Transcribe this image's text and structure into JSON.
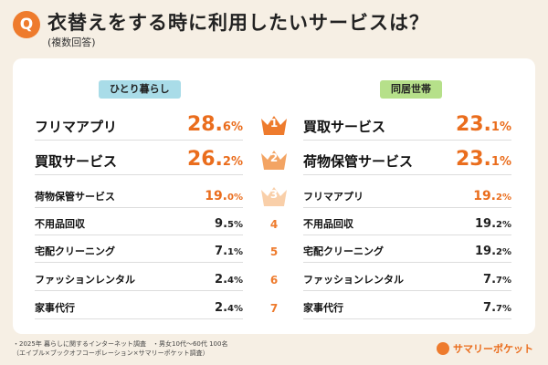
{
  "header": {
    "q": "Q",
    "title": "衣替えをする時に利用したいサービスは？",
    "subtitle": "(複数回答)"
  },
  "chart_data": {
    "type": "table",
    "groups": [
      {
        "name": "ひとり暮らし",
        "items": [
          {
            "label": "フリマアプリ",
            "value": "28.",
            "decimal": "6%"
          },
          {
            "label": "買取サービス",
            "value": "26.",
            "decimal": "2%"
          },
          {
            "label": "荷物保管サービス",
            "value": "19.",
            "decimal": "0%"
          },
          {
            "label": "不用品回収",
            "value": "9.",
            "decimal": "5%"
          },
          {
            "label": "宅配クリーニング",
            "value": "7.",
            "decimal": "1%"
          },
          {
            "label": "ファッションレンタル",
            "value": "2.",
            "decimal": "4%"
          },
          {
            "label": "家事代行",
            "value": "2.",
            "decimal": "4%"
          }
        ]
      },
      {
        "name": "同居世帯",
        "items": [
          {
            "label": "買取サービス",
            "value": "23.",
            "decimal": "1%"
          },
          {
            "label": "荷物保管サービス",
            "value": "23.",
            "decimal": "1%"
          },
          {
            "label": "フリマアプリ",
            "value": "19.",
            "decimal": "2%"
          },
          {
            "label": "不用品回収",
            "value": "19.",
            "decimal": "2%"
          },
          {
            "label": "宅配クリーニング",
            "value": "19.",
            "decimal": "2%"
          },
          {
            "label": "ファッションレンタル",
            "value": "7.",
            "decimal": "7%"
          },
          {
            "label": "家事代行",
            "value": "7.",
            "decimal": "7%"
          }
        ]
      }
    ],
    "ranks": [
      "1",
      "2",
      "3",
      "4",
      "5",
      "6",
      "7"
    ],
    "crown_colors": [
      "#ee7b2d",
      "#f3a463",
      "#f9cfa9"
    ]
  },
  "footer": {
    "note_line1": "・2025年 暮らしに関するインターネット調査　・男女10代〜60代 100名",
    "note_line2": "（エイブル×ブックオフコーポレーション×サマリーポケット調査）",
    "brand": "サマリーポケット"
  }
}
